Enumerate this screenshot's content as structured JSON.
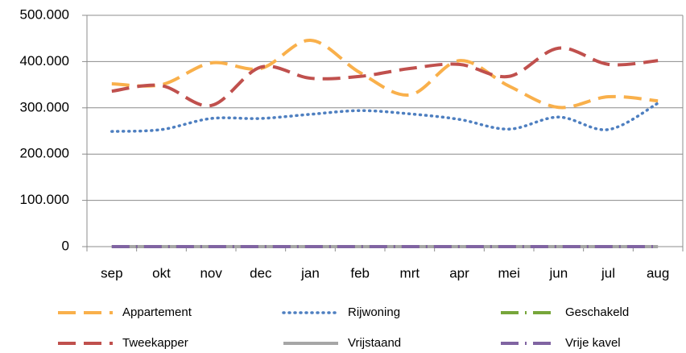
{
  "chart_data": {
    "type": "line",
    "categories": [
      "sep",
      "okt",
      "nov",
      "dec",
      "jan",
      "feb",
      "mrt",
      "apr",
      "mei",
      "jun",
      "jul",
      "aug"
    ],
    "series": [
      {
        "name": "Appartement",
        "color": "#f9b04b",
        "values": [
          352000,
          350000,
          397000,
          385000,
          446000,
          376000,
          328000,
          402000,
          347000,
          301000,
          324000,
          315000
        ]
      },
      {
        "name": "Rijwoning",
        "color": "#4e7fc0",
        "values": [
          249000,
          253000,
          277000,
          277000,
          286000,
          294000,
          287000,
          275000,
          254000,
          280000,
          253000,
          310000
        ]
      },
      {
        "name": "Geschakeld",
        "color": "#77a63a",
        "values": [
          0,
          0,
          0,
          0,
          0,
          0,
          0,
          0,
          0,
          0,
          0,
          0
        ]
      },
      {
        "name": "Tweekapper",
        "color": "#c0504d",
        "values": [
          336000,
          348000,
          305000,
          388000,
          364000,
          368000,
          385000,
          394000,
          368000,
          429000,
          394000,
          402000
        ]
      },
      {
        "name": "Vrijstaand",
        "color": "#a6a6a6",
        "values": [
          0,
          0,
          0,
          0,
          0,
          0,
          0,
          0,
          0,
          0,
          0,
          0
        ]
      },
      {
        "name": "Vrije kavel",
        "color": "#8064a2",
        "values": [
          0,
          0,
          0,
          0,
          0,
          0,
          0,
          0,
          0,
          0,
          0,
          0
        ]
      }
    ],
    "ylim": [
      0,
      500000
    ],
    "yticks": [
      0,
      {
        "value": 100000,
        "label": "100.000"
      },
      {
        "value": 200000,
        "label": "200.000"
      },
      {
        "value": 300000,
        "label": "300.000"
      },
      {
        "value": 400000,
        "label": "400.000"
      },
      {
        "value": 500000,
        "label": "500.000"
      }
    ],
    "grid": true
  }
}
